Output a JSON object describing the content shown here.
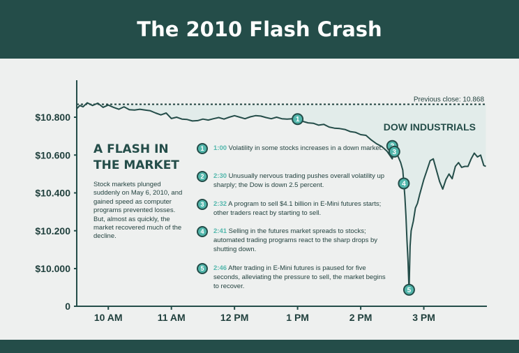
{
  "header": {
    "title": "The 2010 Flash Crash"
  },
  "colors": {
    "header_bg": "#244d49",
    "line": "#244d49",
    "marker_fill": "#52b7ac",
    "band": "#d8e9e6"
  },
  "sidebar": {
    "title_line1": "A FLASH IN",
    "title_line2": "THE MARKET",
    "text": "Stock markets plunged suddenly on May 6, 2010, and gained speed as computer programs prevented losses. But, almost as quickly, the market recovered much of the decline."
  },
  "events": [
    {
      "number": "1",
      "time": "1:00",
      "text": "Volatility in some stocks increases in a down market."
    },
    {
      "number": "2",
      "time": "2:30",
      "text": "Unusually nervous trading pushes overall volatility up sharply; the Dow is down 2.5 percent."
    },
    {
      "number": "3",
      "time": "2:32",
      "text": "A program to sell $4.1 billion in E-Mini futures starts; other traders react by starting to sell."
    },
    {
      "number": "4",
      "time": "2:41",
      "text": "Selling in the futures market spreads to stocks; automated trading programs react to the sharp drops by shutting down."
    },
    {
      "number": "5",
      "time": "2:46",
      "text": "After trading in E-Mini futures is paused for five seconds, alleviating the pressure to sell, the market begins to recover."
    }
  ],
  "chart_data": {
    "type": "line",
    "series": [
      {
        "name": "DOW INDUSTRIALS",
        "x": [
          "9:30",
          "9:33",
          "9:36",
          "9:40",
          "9:45",
          "9:50",
          "9:55",
          "10:00",
          "10:05",
          "10:10",
          "10:15",
          "10:20",
          "10:25",
          "10:30",
          "10:35",
          "10:40",
          "10:45",
          "10:50",
          "10:55",
          "11:00",
          "11:05",
          "11:10",
          "11:15",
          "11:20",
          "11:25",
          "11:30",
          "11:35",
          "11:40",
          "11:45",
          "11:50",
          "11:55",
          "12:00",
          "12:05",
          "12:10",
          "12:15",
          "12:20",
          "12:25",
          "12:30",
          "12:35",
          "12:40",
          "12:45",
          "12:50",
          "12:55",
          "13:00",
          "13:05",
          "13:10",
          "13:15",
          "13:20",
          "13:25",
          "13:30",
          "13:35",
          "13:40",
          "13:45",
          "13:50",
          "13:55",
          "14:00",
          "14:05",
          "14:10",
          "14:15",
          "14:20",
          "14:25",
          "14:30",
          "14:32",
          "14:35",
          "14:38",
          "14:40",
          "14:41",
          "14:42",
          "14:43",
          "14:44",
          "14:45",
          "14:46",
          "14:47",
          "14:48",
          "14:50",
          "14:52",
          "14:54",
          "14:56",
          "14:58",
          "15:00",
          "15:03",
          "15:06",
          "15:09",
          "15:12",
          "15:15",
          "15:18",
          "15:21",
          "15:24",
          "15:27",
          "15:30",
          "15:33",
          "15:36",
          "15:39",
          "15:42",
          "15:45",
          "15:48",
          "15:51",
          "15:54",
          "15:57",
          "15:59"
        ],
        "y": [
          10845,
          10862,
          10855,
          10876,
          10862,
          10874,
          10852,
          10864,
          10852,
          10842,
          10855,
          10840,
          10838,
          10842,
          10838,
          10834,
          10822,
          10812,
          10822,
          10793,
          10800,
          10790,
          10788,
          10780,
          10782,
          10790,
          10785,
          10792,
          10798,
          10790,
          10800,
          10808,
          10800,
          10792,
          10802,
          10808,
          10806,
          10798,
          10792,
          10800,
          10792,
          10790,
          10792,
          10788,
          10778,
          10770,
          10768,
          10758,
          10762,
          10748,
          10742,
          10740,
          10735,
          10724,
          10720,
          10708,
          10704,
          10680,
          10660,
          10645,
          10620,
          10580,
          10640,
          10600,
          10560,
          10520,
          10450,
          10380,
          10280,
          10150,
          10040,
          9880,
          10120,
          10200,
          10250,
          10320,
          10345,
          10390,
          10430,
          10470,
          10520,
          10570,
          10580,
          10520,
          10460,
          10420,
          10470,
          10500,
          10475,
          10540,
          10560,
          10535,
          10540,
          10540,
          10580,
          10610,
          10590,
          10600,
          10545,
          10540
        ]
      }
    ],
    "yticks": [
      "$10.800",
      "$10.600",
      "$10.400",
      "$10.200",
      "$10.000",
      "0"
    ],
    "ytick_values": [
      10800,
      10600,
      10400,
      10200,
      10000,
      9800
    ],
    "xticks": [
      "10 AM",
      "11 AM",
      "12 PM",
      "1 PM",
      "2 PM",
      "3 PM"
    ],
    "xtick_values": [
      "10:00",
      "11:00",
      "12:00",
      "13:00",
      "14:00",
      "15:00"
    ],
    "x_range": [
      "9:30",
      "16:00"
    ],
    "ylim": [
      9800,
      10900
    ],
    "reference_line": {
      "label": "Previous close: 10.868",
      "value": 10868
    },
    "markers": [
      {
        "label": "1",
        "x": "13:00",
        "y": 10790
      },
      {
        "label": "2",
        "x": "14:30",
        "y": 10648
      },
      {
        "label": "3",
        "x": "14:32",
        "y": 10618
      },
      {
        "label": "4",
        "x": "14:41",
        "y": 10450
      },
      {
        "label": "5",
        "x": "14:46",
        "y": 9888
      }
    ],
    "grid": false
  }
}
